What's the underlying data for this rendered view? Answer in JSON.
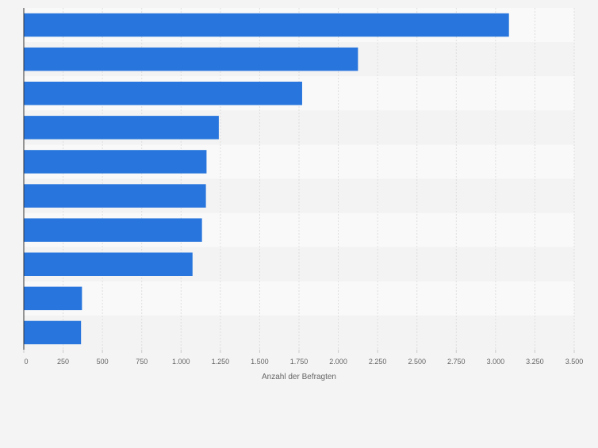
{
  "chart_data": {
    "type": "bar",
    "orientation": "horizontal",
    "categories": [
      "",
      "",
      "",
      "",
      "",
      "",
      "",
      "",
      "",
      ""
    ],
    "values": [
      3085,
      2125,
      1770,
      1240,
      1162,
      1158,
      1133,
      1073,
      370,
      364
    ],
    "xlabel": "Anzahl der Befragten",
    "ylabel": "",
    "xlim": [
      0,
      3500
    ],
    "ticks": [
      {
        "value": 0,
        "label": "0"
      },
      {
        "value": 250,
        "label": "250"
      },
      {
        "value": 500,
        "label": "500"
      },
      {
        "value": 750,
        "label": "750"
      },
      {
        "value": 1000,
        "label": "1.000"
      },
      {
        "value": 1250,
        "label": "1.250"
      },
      {
        "value": 1500,
        "label": "1.500"
      },
      {
        "value": 1750,
        "label": "1.750"
      },
      {
        "value": 2000,
        "label": "2.000"
      },
      {
        "value": 2250,
        "label": "2.250"
      },
      {
        "value": 2500,
        "label": "2.500"
      },
      {
        "value": 2750,
        "label": "2.750"
      },
      {
        "value": 3000,
        "label": "3.000"
      },
      {
        "value": 3250,
        "label": "3.250"
      },
      {
        "value": 3500,
        "label": "3.500"
      }
    ],
    "grid": true,
    "legend": "none",
    "colors": {
      "bar": "#2876dd",
      "band_light": "#f9f9f9",
      "band_dark": "#f3f3f3",
      "grid": "#dedede",
      "axis": "#333333",
      "tick_text": "#666666",
      "page": "#f4f4f4"
    }
  }
}
